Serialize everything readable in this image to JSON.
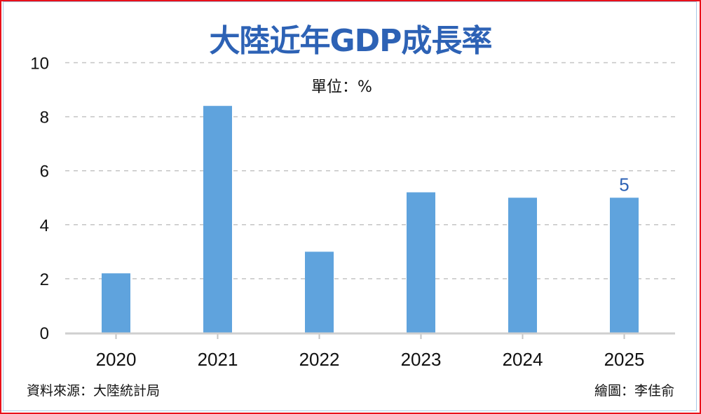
{
  "chart_data": {
    "type": "bar",
    "title": "大陸近年GDP成長率",
    "unit_label": "單位：%",
    "categories": [
      "2020",
      "2021",
      "2022",
      "2023",
      "2024",
      "2025"
    ],
    "values": [
      2.2,
      8.4,
      3.0,
      5.2,
      5.0,
      5.0
    ],
    "data_labels": [
      "",
      "",
      "",
      "",
      "",
      "5"
    ],
    "yticks": [
      "0",
      "2",
      "4",
      "6",
      "8",
      "10"
    ],
    "ylim": [
      0,
      10
    ],
    "grid": true,
    "bar_color": "#5fa3dd",
    "source": "資料來源：大陸統計局",
    "credit": "繪圖：李佳俞"
  }
}
